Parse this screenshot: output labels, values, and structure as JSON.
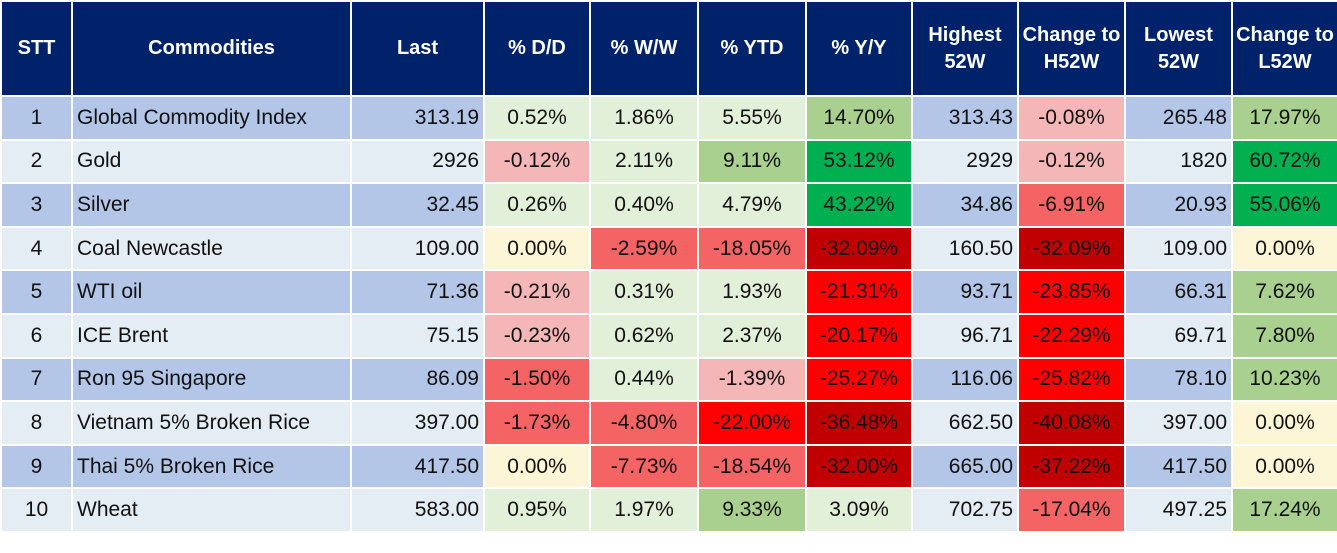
{
  "headers": [
    "STT",
    "Commodities",
    "Last",
    "% D/D",
    "% W/W",
    "% YTD",
    "% Y/Y",
    "Highest 52W",
    "Change to H52W",
    "Lowest 52W",
    "Change to L52W"
  ],
  "rows": [
    {
      "stt": "1",
      "name": "Global Commodity Index",
      "last": "313.19",
      "dd": "0.52%",
      "ww": "1.86%",
      "ytd": "5.55%",
      "yy": "14.70%",
      "h52": "313.43",
      "ch52": "-0.08%",
      "l52": "265.48",
      "cl52": "17.97%"
    },
    {
      "stt": "2",
      "name": "Gold",
      "last": "2926",
      "dd": "-0.12%",
      "ww": "2.11%",
      "ytd": "9.11%",
      "yy": "53.12%",
      "h52": "2929",
      "ch52": "-0.12%",
      "l52": "1820",
      "cl52": "60.72%"
    },
    {
      "stt": "3",
      "name": "Silver",
      "last": "32.45",
      "dd": "0.26%",
      "ww": "0.40%",
      "ytd": "4.79%",
      "yy": "43.22%",
      "h52": "34.86",
      "ch52": "-6.91%",
      "l52": "20.93",
      "cl52": "55.06%"
    },
    {
      "stt": "4",
      "name": "Coal Newcastle",
      "last": "109.00",
      "dd": "0.00%",
      "ww": "-2.59%",
      "ytd": "-18.05%",
      "yy": "-32.09%",
      "h52": "160.50",
      "ch52": "-32.09%",
      "l52": "109.00",
      "cl52": "0.00%"
    },
    {
      "stt": "5",
      "name": "WTI oil",
      "last": "71.36",
      "dd": "-0.21%",
      "ww": "0.31%",
      "ytd": "1.93%",
      "yy": "-21.31%",
      "h52": "93.71",
      "ch52": "-23.85%",
      "l52": "66.31",
      "cl52": "7.62%"
    },
    {
      "stt": "6",
      "name": "ICE Brent",
      "last": "75.15",
      "dd": "-0.23%",
      "ww": "0.62%",
      "ytd": "2.37%",
      "yy": "-20.17%",
      "h52": "96.71",
      "ch52": "-22.29%",
      "l52": "69.71",
      "cl52": "7.80%"
    },
    {
      "stt": "7",
      "name": "Ron 95 Singapore",
      "last": "86.09",
      "dd": "-1.50%",
      "ww": "0.44%",
      "ytd": "-1.39%",
      "yy": "-25.27%",
      "h52": "116.06",
      "ch52": "-25.82%",
      "l52": "78.10",
      "cl52": "10.23%"
    },
    {
      "stt": "8",
      "name": "Vietnam 5% Broken Rice",
      "last": "397.00",
      "dd": "-1.73%",
      "ww": "-4.80%",
      "ytd": "-22.00%",
      "yy": "-36.48%",
      "h52": "662.50",
      "ch52": "-40.08%",
      "l52": "397.00",
      "cl52": "0.00%"
    },
    {
      "stt": "9",
      "name": "Thai 5% Broken Rice",
      "last": "417.50",
      "dd": "0.00%",
      "ww": "-7.73%",
      "ytd": "-18.54%",
      "yy": "-32.00%",
      "h52": "665.00",
      "ch52": "-37.22%",
      "l52": "417.50",
      "cl52": "0.00%"
    },
    {
      "stt": "10",
      "name": "Wheat",
      "last": "583.00",
      "dd": "0.95%",
      "ww": "1.97%",
      "ytd": "9.33%",
      "yy": "3.09%",
      "h52": "702.75",
      "ch52": "-17.04%",
      "l52": "497.25",
      "cl52": "17.24%"
    }
  ],
  "colors": {
    "header_bg": "#00226a",
    "header_text": "#ffffff",
    "row_odd": "#b4c6e7",
    "row_even": "#e4edf4",
    "neutral": "#fdf6d6",
    "pos_light": "#e2efd9",
    "pos_mid": "#a9d08e",
    "pos_strong": "#00b050",
    "neg_light": "#f4b6b6",
    "neg_mid": "#f46464",
    "neg_strong": "#ff0000",
    "neg_deep": "#c00000"
  }
}
